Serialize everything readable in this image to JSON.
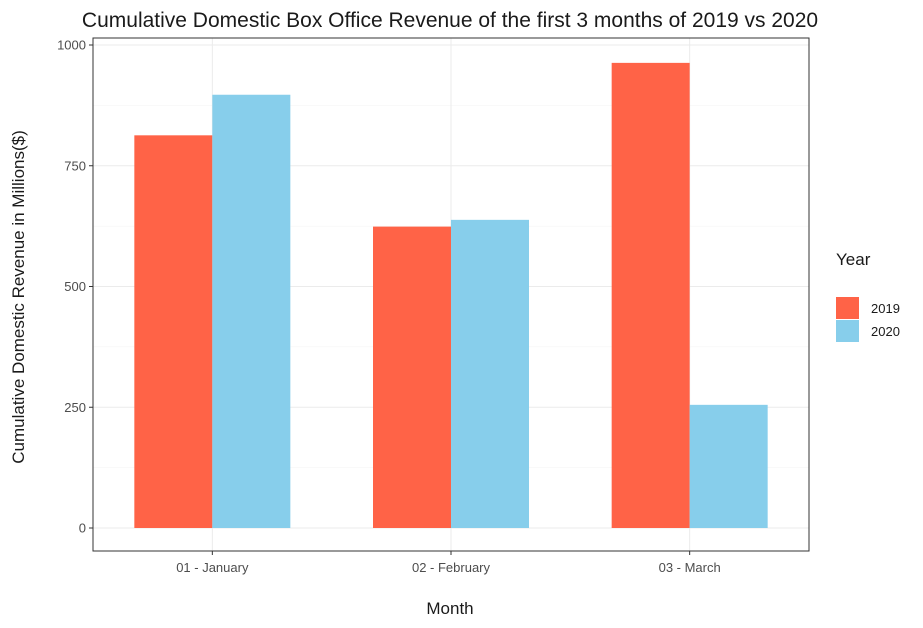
{
  "chart_data": {
    "type": "bar",
    "title": "Cumulative Domestic Box Office Revenue of the first 3 months of 2019 vs 2020",
    "xlabel": "Month",
    "ylabel": "Cumulative Domestic Revenue in Millions($)",
    "categories": [
      "01 - January",
      "02 - February",
      "03 - March"
    ],
    "series": [
      {
        "name": "2019",
        "color": "#FF6347",
        "values": [
          813,
          624,
          963
        ]
      },
      {
        "name": "2020",
        "color": "#87CEEB",
        "values": [
          897,
          638,
          255
        ]
      }
    ],
    "ylim": [
      0,
      1000
    ],
    "yticks": [
      0,
      250,
      500,
      750,
      1000
    ],
    "grid": true,
    "legend": {
      "title": "Year",
      "position": "right"
    }
  }
}
